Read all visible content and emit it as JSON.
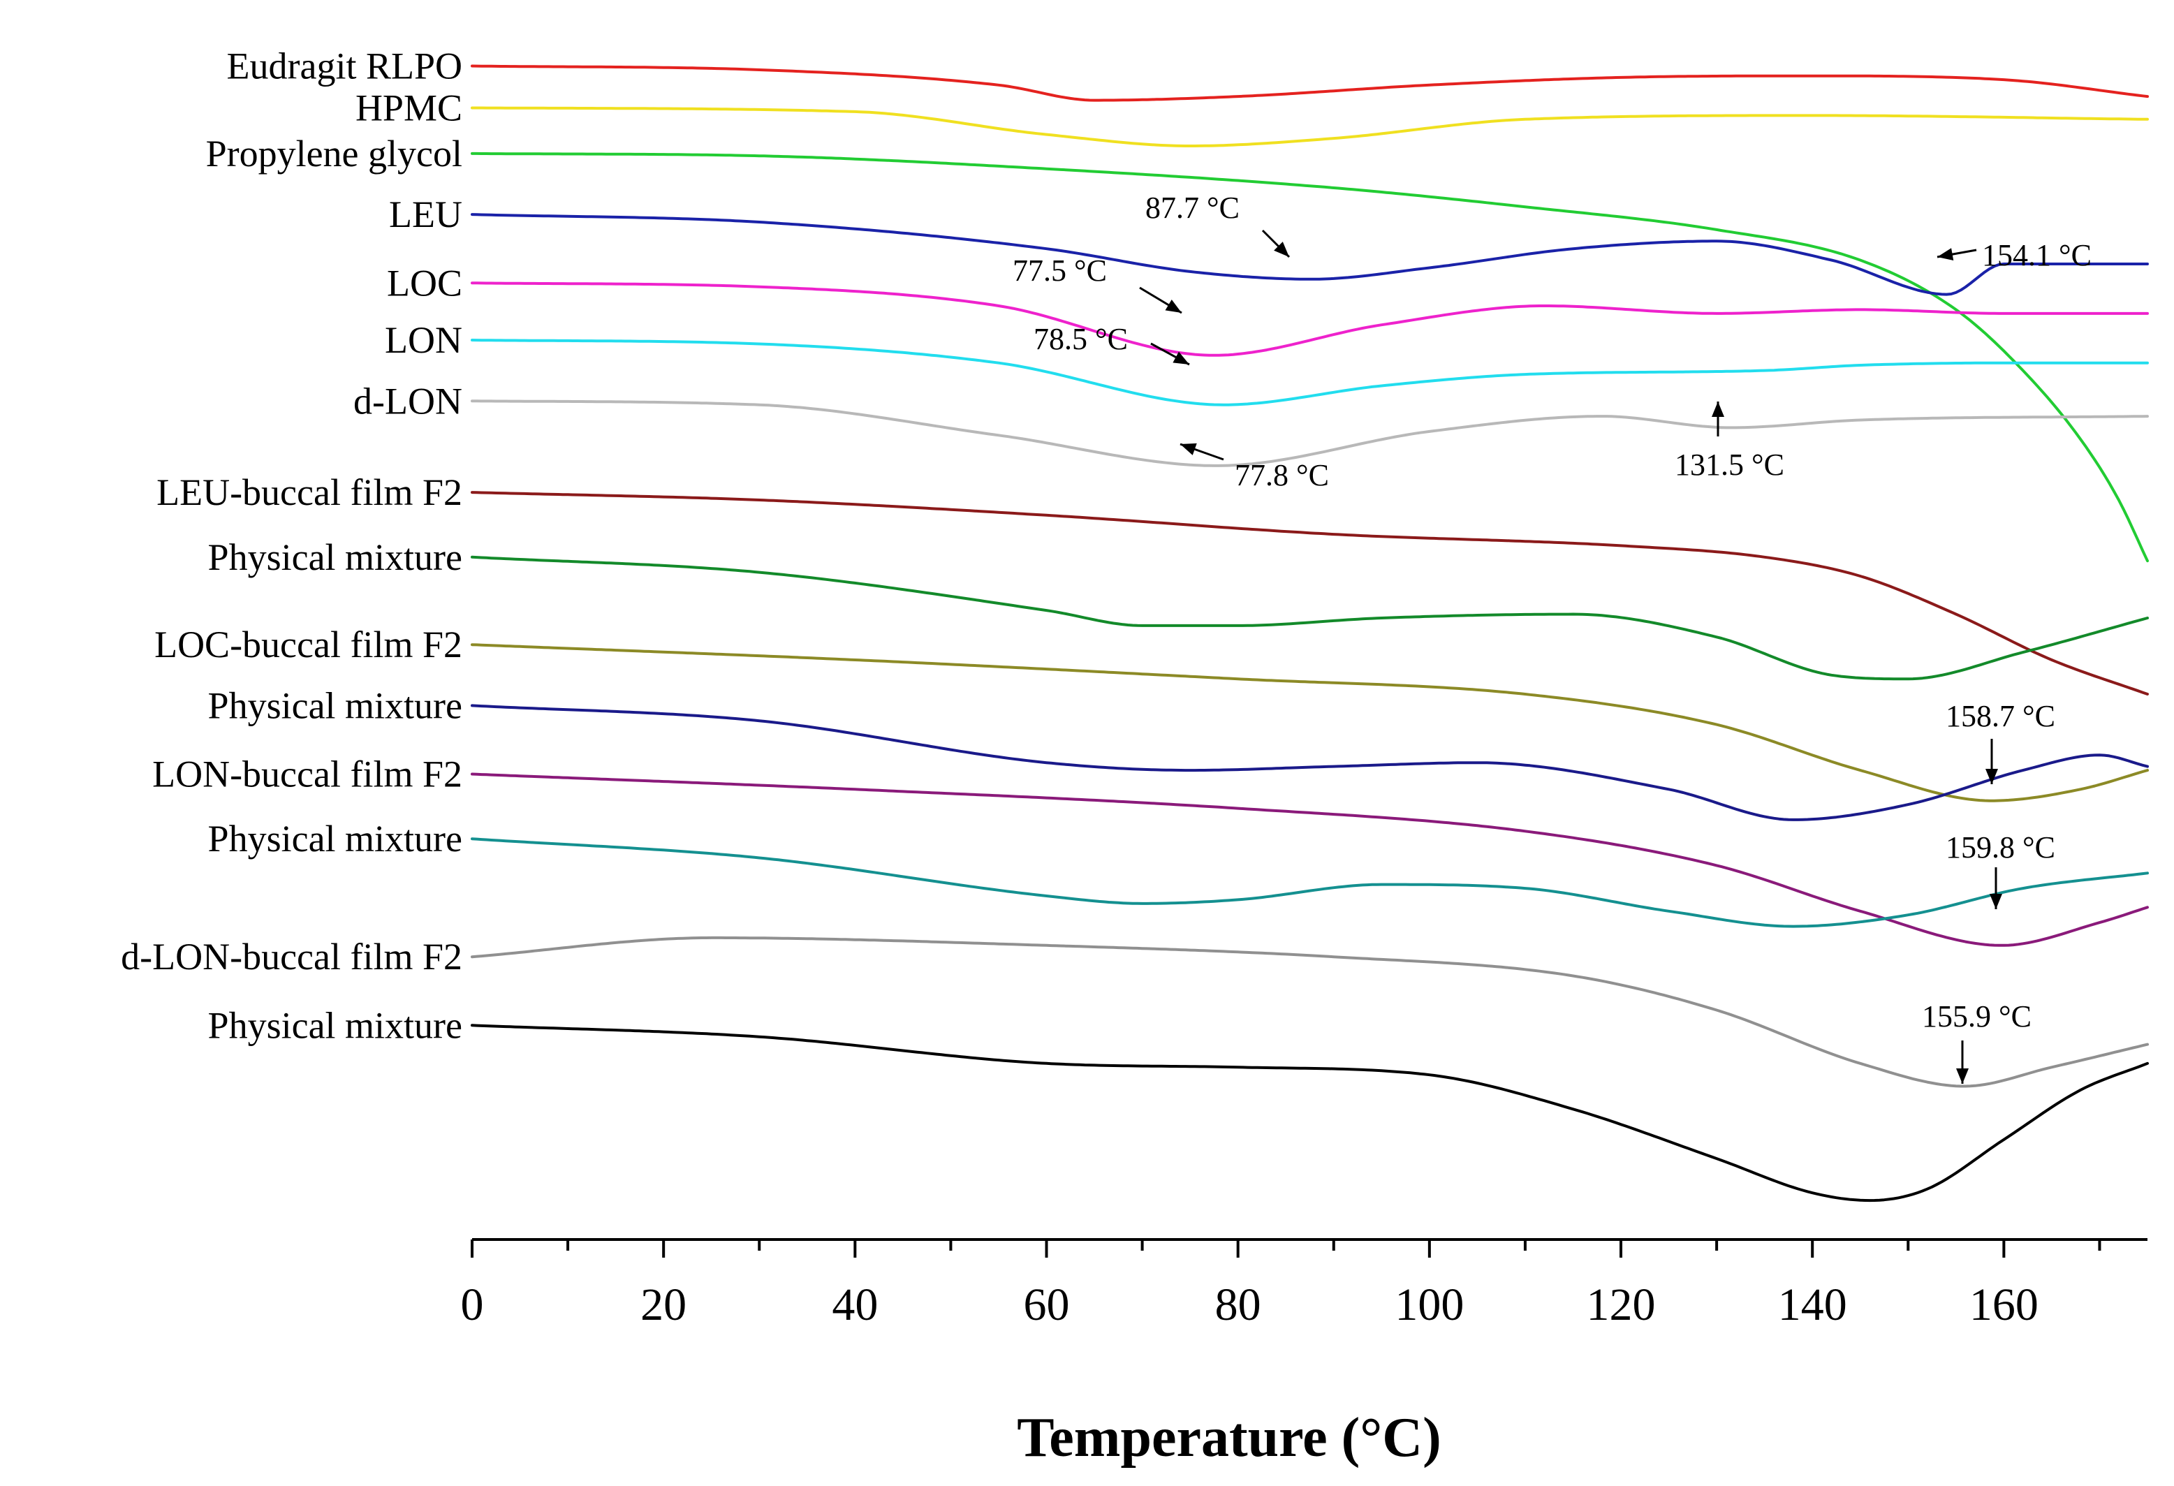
{
  "chart_data": {
    "type": "line",
    "title": "",
    "xlabel": "Temperature (°C)",
    "ylabel": "",
    "xlim": [
      0,
      175
    ],
    "ylim": [
      0,
      15.5
    ],
    "grid": false,
    "legend": "none",
    "xticks": [
      0,
      20,
      40,
      60,
      80,
      100,
      120,
      140,
      160
    ],
    "series": [
      {
        "name": "Eudragit RLPO",
        "color": "#e4221f",
        "x": [
          0,
          30,
          55,
          65,
          80,
          100,
          120,
          140,
          160,
          175
        ],
        "y": [
          15.0,
          14.95,
          14.75,
          14.55,
          14.6,
          14.75,
          14.85,
          14.87,
          14.82,
          14.6
        ]
      },
      {
        "name": "HPMC",
        "color": "#f0e020",
        "x": [
          0,
          40,
          60,
          75,
          90,
          110,
          140,
          175
        ],
        "y": [
          14.45,
          14.4,
          14.1,
          13.95,
          14.05,
          14.3,
          14.35,
          14.3
        ]
      },
      {
        "name": "Propylene glycol",
        "color": "#22cc33",
        "x": [
          0,
          30,
          60,
          90,
          110,
          130,
          145,
          155,
          162,
          168,
          172,
          175
        ],
        "y": [
          13.85,
          13.82,
          13.65,
          13.4,
          13.15,
          12.85,
          12.45,
          11.8,
          11.0,
          10.1,
          9.3,
          8.5
        ]
      },
      {
        "name": "LEU",
        "color": "#1a22a8",
        "x": [
          0,
          30,
          60,
          75,
          87.7,
          100,
          115,
          130,
          142,
          154.1,
          160,
          175
        ],
        "y": [
          13.05,
          12.95,
          12.6,
          12.3,
          12.2,
          12.35,
          12.6,
          12.7,
          12.45,
          12.0,
          12.4,
          12.4
        ]
      },
      {
        "name": "LOC",
        "color": "#ee22cc",
        "x": [
          0,
          30,
          55,
          77.5,
          95,
          112,
          130,
          145,
          160,
          175
        ],
        "y": [
          12.15,
          12.1,
          11.85,
          11.2,
          11.6,
          11.85,
          11.75,
          11.8,
          11.75,
          11.75
        ]
      },
      {
        "name": "LON",
        "color": "#22ddee",
        "x": [
          0,
          30,
          55,
          78.5,
          95,
          110,
          135,
          145,
          160,
          175
        ],
        "y": [
          11.4,
          11.35,
          11.1,
          10.55,
          10.8,
          10.95,
          11.0,
          11.07,
          11.1,
          11.1
        ]
      },
      {
        "name": "d-LON",
        "color": "#b8b8b8",
        "x": [
          0,
          30,
          55,
          77.8,
          100,
          118,
          131.5,
          145,
          175
        ],
        "y": [
          10.6,
          10.55,
          10.15,
          9.75,
          10.2,
          10.4,
          10.25,
          10.35,
          10.4
        ]
      },
      {
        "name": "LEU-buccal film F2",
        "color": "#8b1a1a",
        "x": [
          0,
          30,
          60,
          90,
          120,
          135,
          145,
          155,
          165,
          175
        ],
        "y": [
          9.4,
          9.3,
          9.1,
          8.85,
          8.7,
          8.55,
          8.3,
          7.8,
          7.2,
          6.75
        ]
      },
      {
        "name": "Physical mixture",
        "color": "#138a2a",
        "x": [
          0,
          30,
          60,
          70,
          80,
          95,
          115,
          130,
          142,
          150,
          162,
          175
        ],
        "y": [
          8.55,
          8.35,
          7.85,
          7.65,
          7.65,
          7.75,
          7.8,
          7.5,
          7.0,
          6.95,
          7.3,
          7.75
        ]
      },
      {
        "name": "LOC-buccal film F2",
        "color": "#8c8a26",
        "x": [
          0,
          40,
          80,
          110,
          130,
          145,
          158.7,
          168,
          175
        ],
        "y": [
          7.4,
          7.2,
          6.95,
          6.75,
          6.35,
          5.75,
          5.35,
          5.5,
          5.75
        ]
      },
      {
        "name": "Physical mixture",
        "color": "#1a1a8a",
        "x": [
          0,
          30,
          60,
          75,
          90,
          105,
          125,
          138,
          150,
          162,
          170,
          175
        ],
        "y": [
          6.6,
          6.4,
          5.85,
          5.75,
          5.8,
          5.85,
          5.5,
          5.1,
          5.3,
          5.75,
          5.95,
          5.8
        ]
      },
      {
        "name": "LON-buccal film F2",
        "color": "#8a1a7a",
        "x": [
          0,
          40,
          80,
          110,
          130,
          145,
          159.8,
          170,
          175
        ],
        "y": [
          5.7,
          5.5,
          5.25,
          4.95,
          4.5,
          3.9,
          3.45,
          3.75,
          3.95
        ]
      },
      {
        "name": "Physical mixture",
        "color": "#149090",
        "x": [
          0,
          30,
          60,
          70,
          80,
          95,
          110,
          125,
          138,
          150,
          162,
          175
        ],
        "y": [
          4.85,
          4.6,
          4.1,
          4.0,
          4.05,
          4.25,
          4.2,
          3.9,
          3.7,
          3.85,
          4.2,
          4.4
        ]
      },
      {
        "name": "d-LON-buccal film F2",
        "color": "#909090",
        "x": [
          0,
          25,
          60,
          90,
          115,
          130,
          145,
          155.9,
          165,
          175
        ],
        "y": [
          3.3,
          3.55,
          3.45,
          3.3,
          3.05,
          2.6,
          1.9,
          1.6,
          1.85,
          2.15
        ]
      },
      {
        "name": "Physical mixture",
        "color": "#000000",
        "x": [
          0,
          30,
          60,
          80,
          100,
          115,
          130,
          140,
          146,
          152,
          160,
          168,
          175
        ],
        "y": [
          2.4,
          2.25,
          1.9,
          1.85,
          1.75,
          1.3,
          0.65,
          0.2,
          0.1,
          0.25,
          0.9,
          1.55,
          1.9
        ]
      }
    ],
    "annotations": [
      {
        "text": "87.7 °C",
        "x": 87.7,
        "y": 12.2
      },
      {
        "text": "154.1 °C",
        "x": 154.1,
        "y": 12.0
      },
      {
        "text": "77.5 °C",
        "x": 77.5,
        "y": 11.2
      },
      {
        "text": "78.5 °C",
        "x": 78.5,
        "y": 10.55
      },
      {
        "text": "77.8 °C",
        "x": 77.8,
        "y": 9.75
      },
      {
        "text": "131.5 °C",
        "x": 131.5,
        "y": 10.25
      },
      {
        "text": "158.7 °C",
        "x": 158.7,
        "y": 5.35
      },
      {
        "text": "159.8 °C",
        "x": 159.8,
        "y": 3.45
      },
      {
        "text": "155.9 °C",
        "x": 155.9,
        "y": 1.6
      }
    ]
  }
}
